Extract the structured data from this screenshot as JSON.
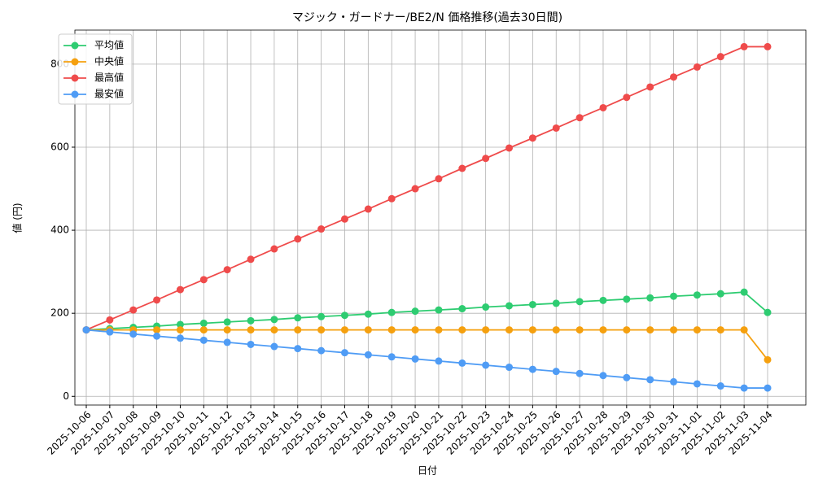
{
  "chart_data": {
    "type": "line",
    "title": "マジック・ガードナー/BE2/N 価格推移(過去30日間)",
    "x_label": "日付",
    "y_label": "値 (円)",
    "categories": [
      "2025-10-06",
      "2025-10-07",
      "2025-10-08",
      "2025-10-09",
      "2025-10-10",
      "2025-10-11",
      "2025-10-12",
      "2025-10-13",
      "2025-10-14",
      "2025-10-15",
      "2025-10-16",
      "2025-10-17",
      "2025-10-18",
      "2025-10-19",
      "2025-10-20",
      "2025-10-21",
      "2025-10-22",
      "2025-10-23",
      "2025-10-24",
      "2025-10-25",
      "2025-10-26",
      "2025-10-27",
      "2025-10-28",
      "2025-10-29",
      "2025-10-30",
      "2025-10-31",
      "2025-11-01",
      "2025-11-02",
      "2025-11-03",
      "2025-11-04"
    ],
    "series": [
      {
        "name": "平均値",
        "color": "#2ecc71",
        "values": [
          160,
          163,
          166,
          169,
          173,
          176,
          179,
          182,
          185,
          189,
          192,
          195,
          198,
          202,
          205,
          208,
          211,
          215,
          218,
          221,
          224,
          228,
          231,
          234,
          237,
          241,
          244,
          247,
          251,
          202
        ]
      },
      {
        "name": "中央値",
        "color": "#f5a00f",
        "values": [
          160,
          160,
          160,
          160,
          160,
          160,
          160,
          160,
          160,
          160,
          160,
          160,
          160,
          160,
          160,
          160,
          160,
          160,
          160,
          160,
          160,
          160,
          160,
          160,
          160,
          160,
          160,
          160,
          160,
          88
        ]
      },
      {
        "name": "最高値",
        "color": "#ef4b4b",
        "values": [
          160,
          184,
          208,
          232,
          257,
          281,
          305,
          330,
          355,
          379,
          403,
          427,
          451,
          476,
          500,
          524,
          549,
          573,
          598,
          622,
          646,
          671,
          695,
          720,
          745,
          769,
          793,
          818,
          842,
          842
        ]
      },
      {
        "name": "最安値",
        "color": "#4f9cf5",
        "values": [
          160,
          155,
          150,
          145,
          140,
          135,
          130,
          125,
          120,
          115,
          110,
          105,
          100,
          95,
          90,
          85,
          80,
          75,
          70,
          65,
          60,
          55,
          50,
          45,
          40,
          35,
          30,
          25,
          20,
          20
        ]
      }
    ],
    "ylim": [
      -21,
      882
    ],
    "yticks": [
      0,
      200,
      400,
      600,
      800
    ],
    "grid": true,
    "legend": "upper left"
  }
}
